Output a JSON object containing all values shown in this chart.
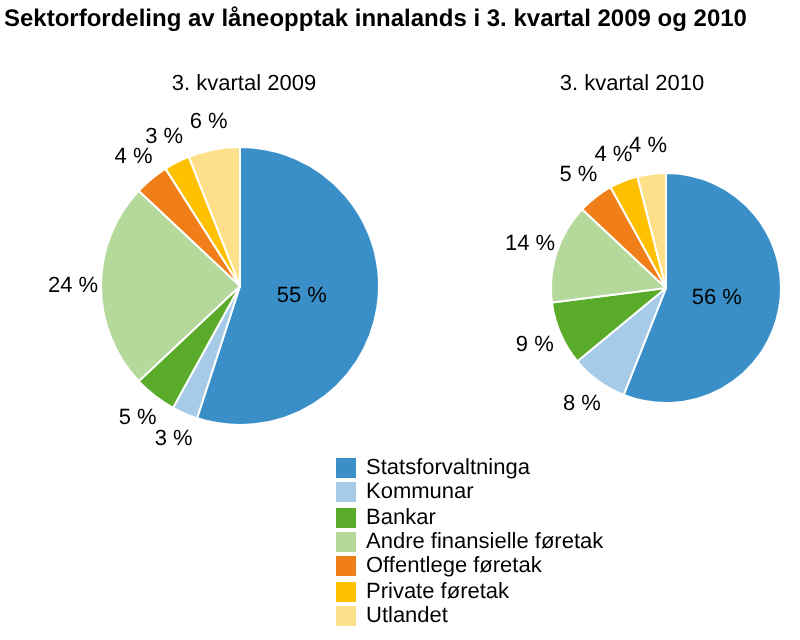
{
  "chart_data": [
    {
      "type": "pie",
      "title": "Sektorfordeling av låneopptak innalands i 3. kvartal 2009 og 2010",
      "subtitle": "3. kvartal 2009",
      "categories": [
        "Statsforvaltninga",
        "Kommunar",
        "Bankar",
        "Andre finansielle føretak",
        "Offentlege føretak",
        "Private føretak",
        "Utlandet"
      ],
      "values": [
        55,
        3,
        5,
        24,
        4,
        3,
        6
      ],
      "value_labels": [
        "55 %",
        "3 %",
        "5 %",
        "24 %",
        "4 %",
        "3 %",
        "6 %"
      ],
      "colors": [
        "#3a8fc8",
        "#a6cbe8",
        "#5aab2a",
        "#b5d99a",
        "#f07f1a",
        "#ffc000",
        "#ffe08a"
      ],
      "legend": "bottom"
    },
    {
      "type": "pie",
      "subtitle": "3. kvartal 2010",
      "categories": [
        null,
        null,
        null,
        null,
        null,
        null,
        null
      ],
      "values": [
        56,
        8,
        9,
        14,
        5,
        4,
        4
      ],
      "value_labels": [
        "56 %",
        "8 %",
        "9 %",
        "14 %",
        "5 %",
        "4 %",
        "4 %"
      ],
      "colors": [
        "#3a8fc8",
        "#a6cbe8",
        "#5aab2a",
        "#b5d99a",
        "#f07f1a",
        "#ffc000",
        "#ffe08a"
      ]
    }
  ]
}
